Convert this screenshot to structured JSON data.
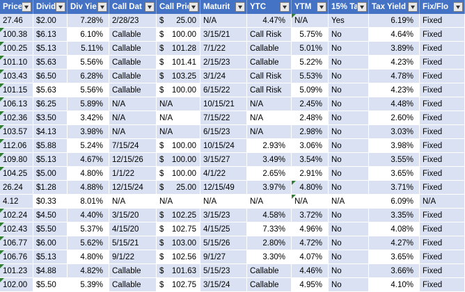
{
  "colors": {
    "header_bg": "#4472C4",
    "band_blue": "#D9E1F2",
    "cell_white": "#FFFFFF",
    "grid_line": "#FFFFFF",
    "header_text": "#FFFFFF",
    "body_text": "#000000",
    "error_triangle_green": "#2F7E33",
    "filter_button_bg": "#E7E7E7"
  },
  "table": {
    "columns": [
      {
        "key": "price",
        "label": "Price",
        "align": "left"
      },
      {
        "key": "dividend",
        "label": "Divid",
        "align": "left"
      },
      {
        "key": "div-yield",
        "label": "Div Yie",
        "align": "right"
      },
      {
        "key": "call-date",
        "label": "Call Dat",
        "align": "left"
      },
      {
        "key": "call-price",
        "label": "Call Pric",
        "align": "left"
      },
      {
        "key": "maturity",
        "label": "Maturit",
        "align": "left"
      },
      {
        "key": "ytc",
        "label": "YTC",
        "align": "left"
      },
      {
        "key": "ytm",
        "label": "YTM",
        "align": "left"
      },
      {
        "key": "tax-15",
        "label": "15% Ta",
        "align": "left"
      },
      {
        "key": "tax-yield",
        "label": "Tax Yield",
        "align": "right"
      },
      {
        "key": "fix-float",
        "label": "Fix/Flo",
        "align": "left"
      }
    ],
    "rows": [
      [
        "27.46",
        "$2.00",
        "7.28%",
        "2/28/23",
        "$ 25.00",
        "N/A",
        "4.47%",
        "N/A",
        "Yes",
        "6.19%",
        "Fixed"
      ],
      [
        "100.38",
        "$6.13",
        "6.10%",
        "Callable",
        "$ 100.00",
        "3/15/21",
        "Call Risk",
        "5.75%",
        "No",
        "4.64%",
        "Fixed"
      ],
      [
        "100.25",
        "$5.13",
        "5.11%",
        "Callable",
        "$ 101.28",
        "7/1/22",
        "Callable",
        "5.01%",
        "No",
        "3.89%",
        "Fixed"
      ],
      [
        "101.10",
        "$5.63",
        "5.56%",
        "Callable",
        "$ 101.41",
        "2/15/23",
        "Callable",
        "5.22%",
        "No",
        "4.23%",
        "Fixed"
      ],
      [
        "103.43",
        "$6.50",
        "6.28%",
        "Callable",
        "$ 103.25",
        "3/1/24",
        "Call Risk",
        "5.53%",
        "No",
        "4.78%",
        "Fixed"
      ],
      [
        "101.15",
        "$5.63",
        "5.56%",
        "Callable",
        "$ 100.00",
        "6/15/22",
        "Call Risk",
        "5.09%",
        "No",
        "4.23%",
        "Fixed"
      ],
      [
        "106.13",
        "$6.25",
        "5.89%",
        "N/A",
        "N/A",
        "10/15/21",
        "N/A",
        "2.45%",
        "No",
        "4.48%",
        "Fixed"
      ],
      [
        "102.36",
        "$3.50",
        "3.42%",
        "N/A",
        "N/A",
        "7/15/22",
        "N/A",
        "2.48%",
        "No",
        "2.60%",
        "Fixed"
      ],
      [
        "103.57",
        "$4.13",
        "3.98%",
        "N/A",
        "N/A",
        "6/15/23",
        "N/A",
        "2.98%",
        "No",
        "3.03%",
        "Fixed"
      ],
      [
        "112.06",
        "$5.88",
        "5.24%",
        "7/15/24",
        "$ 100.00",
        "10/15/24",
        "2.93%",
        "3.06%",
        "No",
        "3.98%",
        "Fixed"
      ],
      [
        "109.80",
        "$5.13",
        "4.67%",
        "12/15/26",
        "$ 100.00",
        "3/15/27",
        "3.49%",
        "3.54%",
        "No",
        "3.55%",
        "Fixed"
      ],
      [
        "104.25",
        "$5.00",
        "4.80%",
        "1/1/22",
        "$ 100.00",
        "4/1/22",
        "2.65%",
        "2.91%",
        "No",
        "3.65%",
        "Fixed"
      ],
      [
        "26.24",
        "$1.28",
        "4.88%",
        "12/15/24",
        "$ 25.00",
        "12/15/49",
        "3.97%",
        "4.80%",
        "No",
        "3.71%",
        "Fixed"
      ],
      [
        "4.12",
        "$0.33",
        "8.01%",
        "N/A",
        "N/A",
        "N/A",
        "N/A",
        "N/A",
        "N/A",
        "6.09%",
        "N/A"
      ],
      [
        "102.24",
        "$4.50",
        "4.40%",
        "3/15/20",
        "$ 102.25",
        "3/15/23",
        "4.58%",
        "3.72%",
        "No",
        "3.35%",
        "Fixed"
      ],
      [
        "102.43",
        "$5.50",
        "5.37%",
        "4/15/20",
        "$ 102.75",
        "4/15/25",
        "7.33%",
        "4.96%",
        "No",
        "4.08%",
        "Fixed"
      ],
      [
        "106.77",
        "$6.00",
        "5.62%",
        "5/15/21",
        "$ 103.00",
        "5/15/26",
        "2.80%",
        "4.72%",
        "No",
        "4.27%",
        "Fixed"
      ],
      [
        "106.76",
        "$5.13",
        "4.80%",
        "9/1/22",
        "$ 102.56",
        "9/1/27",
        "3.30%",
        "4.07%",
        "No",
        "3.65%",
        "Fixed"
      ],
      [
        "101.23",
        "$4.88",
        "4.82%",
        "Callable",
        "$ 101.63",
        "5/15/23",
        "Callable",
        "4.46%",
        "No",
        "3.66%",
        "Fixed"
      ],
      [
        "102.00",
        "$5.50",
        "5.39%",
        "Callable",
        "$ 102.75",
        "3/15/24",
        "Callable",
        "4.95%",
        "No",
        "4.10%",
        "Fixed"
      ]
    ],
    "white_cells": [
      [
        2,
        2
      ],
      [
        4,
        2
      ],
      [
        6,
        2
      ],
      [
        8,
        2
      ],
      [
        10,
        2
      ],
      [
        12,
        2
      ],
      [
        14,
        2
      ],
      [
        16,
        2
      ],
      [
        18,
        2
      ],
      [
        20,
        2
      ],
      [
        2,
        4
      ],
      [
        4,
        4
      ],
      [
        6,
        4
      ],
      [
        8,
        4
      ],
      [
        10,
        4
      ],
      [
        12,
        4
      ],
      [
        14,
        4
      ],
      [
        16,
        4
      ],
      [
        18,
        4
      ],
      [
        20,
        4
      ],
      [
        2,
        7
      ],
      [
        4,
        7
      ],
      [
        6,
        7
      ],
      [
        8,
        7
      ],
      [
        10,
        7
      ],
      [
        12,
        7
      ],
      [
        14,
        7
      ],
      [
        16,
        7
      ],
      [
        18,
        7
      ],
      [
        20,
        7
      ],
      [
        2,
        9
      ],
      [
        4,
        9
      ],
      [
        6,
        9
      ],
      [
        8,
        9
      ],
      [
        10,
        9
      ],
      [
        12,
        9
      ],
      [
        14,
        9
      ],
      [
        16,
        9
      ],
      [
        18,
        9
      ],
      [
        20,
        9
      ],
      [
        6,
        1
      ],
      [
        14,
        1
      ],
      [
        20,
        1
      ],
      [
        14,
        3
      ],
      [
        14,
        5
      ],
      [
        14,
        8
      ],
      [
        8,
        6
      ],
      [
        10,
        6
      ],
      [
        12,
        6
      ],
      [
        14,
        6
      ],
      [
        16,
        6
      ],
      [
        18,
        6
      ]
    ],
    "error_triangle_cells": [
      [
        1,
        7
      ],
      [
        2,
        0
      ],
      [
        3,
        0
      ],
      [
        4,
        0
      ],
      [
        5,
        0
      ],
      [
        6,
        0
      ],
      [
        7,
        0
      ],
      [
        8,
        0
      ],
      [
        9,
        0
      ],
      [
        10,
        0
      ],
      [
        11,
        0
      ],
      [
        12,
        0
      ],
      [
        13,
        7
      ],
      [
        14,
        7
      ],
      [
        15,
        0
      ],
      [
        16,
        0
      ],
      [
        17,
        0
      ],
      [
        18,
        0
      ],
      [
        19,
        0
      ],
      [
        20,
        0
      ]
    ]
  }
}
